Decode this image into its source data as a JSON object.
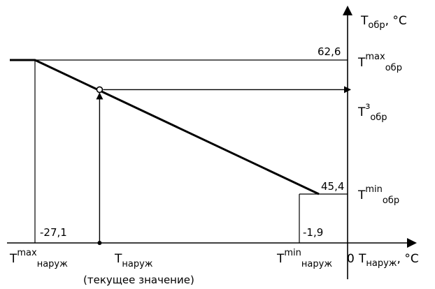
{
  "chart_data": {
    "type": "line",
    "series": [
      {
        "x": [
          -35,
          -27.1,
          -1.9,
          1.0
        ],
        "y": [
          62.6,
          62.6,
          45.4,
          45.4
        ]
      }
    ],
    "current_point": {
      "x": -21.5,
      "y": 58.8
    },
    "xlim": [
      -35,
      3
    ],
    "ylim": [
      38,
      65
    ],
    "data_labels": {
      "y_max": "62,6",
      "y_min": "45,4",
      "x_max": "-27,1",
      "x_min": "-1,9"
    },
    "axes": {
      "y_axis": {
        "main": "T",
        "sub": "обр",
        "unit": ", °C"
      },
      "x_axis": {
        "main": "T",
        "sub": "наруж",
        "unit": ", °C",
        "origin": "0"
      }
    },
    "y_marks": {
      "max": {
        "main": "T",
        "sup": "max",
        "sub": "обр"
      },
      "current": {
        "main": "T",
        "sup": "з",
        "sub": "обр"
      },
      "min": {
        "main": "T",
        "sup": "min",
        "sub": "обр"
      }
    },
    "x_marks": {
      "max": {
        "main": "T",
        "sup": "max",
        "sub": "наруж"
      },
      "current": {
        "main": "T",
        "sub": "наруж",
        "note": "(текущее значение)"
      },
      "min": {
        "main": "T",
        "sup": "min",
        "sub": "наруж"
      }
    }
  }
}
